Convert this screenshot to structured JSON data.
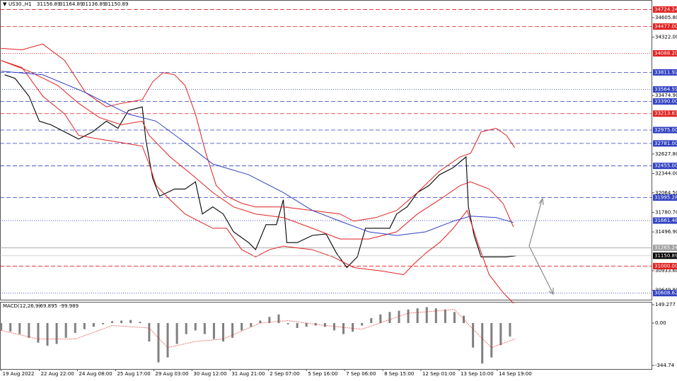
{
  "chart_data": [
    {
      "type": "line",
      "title": "US30.,H1",
      "ohlc": [
        31156.89,
        31164.89,
        31136.89,
        31150.89
      ],
      "xlim": [
        -13,
        551
      ],
      "ylim": [
        30503,
        34862
      ],
      "xticks": [
        {
          "value": -12,
          "label": "19 Aug 2022"
        },
        {
          "value": 21,
          "label": "22 Aug 22:00"
        },
        {
          "value": 54,
          "label": "24 Aug 08:00"
        },
        {
          "value": 87,
          "label": "25 Aug 17:00"
        },
        {
          "value": 120,
          "label": "29 Aug 03:00"
        },
        {
          "value": 153,
          "label": "30 Aug 12:00"
        },
        {
          "value": 186,
          "label": "31 Aug 21:00"
        },
        {
          "value": 219,
          "label": "2 Sep 07:00"
        },
        {
          "value": 252,
          "label": "5 Sep 16:00"
        },
        {
          "value": 285,
          "label": "7 Sep 06:00"
        },
        {
          "value": 318,
          "label": "8 Sep 15:00"
        },
        {
          "value": 351,
          "label": "12 Sep 01:00"
        },
        {
          "value": 384,
          "label": "13 Sep 10:00"
        },
        {
          "value": 417,
          "label": "14 Sep 19:00"
        }
      ],
      "yticks": [
        {
          "value": 34605.8,
          "label": "34605.80"
        },
        {
          "value": 34322,
          "label": "34322.00"
        },
        {
          "value": 33474.9,
          "label": "33474.90"
        },
        {
          "value": 32627.8,
          "label": "32627.80"
        },
        {
          "value": 32344,
          "label": "32344.00"
        },
        {
          "value": 32064.5,
          "label": "32064.50"
        },
        {
          "value": 31780.7,
          "label": "31780.70"
        },
        {
          "value": 31496.9,
          "label": "31496.90"
        },
        {
          "value": 30933.6,
          "label": "30933.60"
        },
        {
          "value": 30649.8,
          "label": "30649.80"
        }
      ],
      "series": [
        {
          "color": "#000000",
          "x": [
            -9,
            0,
            12,
            21,
            31,
            43,
            55,
            67,
            79,
            89,
            98,
            110,
            113,
            119,
            125,
            138,
            147,
            156,
            162,
            171,
            180,
            189,
            202,
            208,
            217,
            226,
            232,
            235,
            244,
            257,
            269,
            278,
            287,
            296,
            303,
            312,
            324,
            330,
            339,
            348,
            358,
            367,
            379,
            390,
            392,
            397,
            403,
            416,
            425,
            433
          ],
          "values": [
            33777,
            33725,
            33466,
            33104,
            33052,
            32948,
            32845,
            32948,
            33104,
            33000,
            33259,
            33311,
            32845,
            32275,
            32016,
            32119,
            32119,
            32223,
            31757,
            31860,
            31757,
            31498,
            31342,
            31239,
            31602,
            31602,
            31964,
            31342,
            31342,
            31446,
            31467,
            31187,
            30980,
            31135,
            31550,
            31550,
            31550,
            31757,
            31860,
            32068,
            32171,
            32327,
            32430,
            32586,
            31860,
            31446,
            31135,
            31135,
            31135,
            31151
          ]
        },
        {
          "color": "#e02020",
          "x": [
            -12,
            6,
            24,
            43,
            61,
            79,
            92,
            110,
            119,
            128,
            138,
            147,
            156,
            165,
            174,
            183,
            196,
            208,
            232,
            257,
            281,
            293,
            312,
            330,
            348,
            367,
            385,
            394,
            403,
            416,
            425,
            432
          ],
          "values": [
            34160,
            34139,
            34223,
            33984,
            33518,
            33311,
            33363,
            33415,
            33674,
            33808,
            33777,
            33622,
            33207,
            32638,
            32171,
            32016,
            31912,
            31860,
            31860,
            31809,
            31757,
            31653,
            31705,
            31809,
            32068,
            32379,
            32586,
            32638,
            32948,
            33000,
            32897,
            32720
          ]
        },
        {
          "color": "#e02020",
          "x": [
            -12,
            12,
            37,
            55,
            73,
            92,
            110,
            116,
            134,
            153,
            171,
            189,
            208,
            232,
            257,
            281,
            306,
            330,
            348,
            367,
            385,
            394,
            410,
            422,
            431
          ],
          "values": [
            33984,
            33829,
            33622,
            33363,
            33156,
            33052,
            33104,
            32897,
            32586,
            32327,
            32068,
            31860,
            31757,
            31705,
            31550,
            31394,
            31394,
            31498,
            31757,
            31964,
            32171,
            32223,
            32119,
            31912,
            31570
          ]
        },
        {
          "color": "#e02020",
          "x": [
            -12,
            6,
            24,
            43,
            55,
            73,
            92,
            110,
            116,
            122,
            134,
            147,
            159,
            171,
            183,
            196,
            208,
            220,
            232,
            257,
            275,
            293,
            318,
            336,
            345,
            355,
            367,
            379,
            391,
            400,
            410,
            422,
            431
          ],
          "values": [
            33984,
            33881,
            33466,
            33207,
            32897,
            32845,
            32793,
            32741,
            32482,
            32171,
            31964,
            31757,
            31653,
            31550,
            31550,
            31239,
            31135,
            31239,
            31291,
            31239,
            31135,
            30980,
            30928,
            30876,
            31032,
            31187,
            31342,
            31550,
            31809,
            31342,
            30876,
            30617,
            30462
          ]
        },
        {
          "color": "#3040c0",
          "x": [
            -12,
            24,
            61,
            98,
            122,
            147,
            171,
            202,
            232,
            257,
            281,
            306,
            330,
            355,
            379,
            394,
            416,
            431
          ],
          "values": [
            33829,
            33777,
            33518,
            33207,
            33104,
            32793,
            32482,
            32327,
            32068,
            31809,
            31653,
            31498,
            31446,
            31498,
            31653,
            31726,
            31705,
            31633
          ]
        }
      ],
      "levels": [
        {
          "value": 34724.24,
          "color": "#e02020",
          "dash": "dashed"
        },
        {
          "value": 34477,
          "label": "34477.00",
          "color": "#e02020",
          "dash": "dashed"
        },
        {
          "value": 34088.2,
          "label": "34088.20",
          "color": "#e02020",
          "dash": "dotted"
        },
        {
          "value": 33811.92,
          "color": "#3040c0",
          "dash": "dashed"
        },
        {
          "value": 33564.59,
          "color": "#3040c0",
          "dash": "dotted"
        },
        {
          "value": 33390,
          "label": "33390.00",
          "color": "#3040c0",
          "dash": "dashed"
        },
        {
          "value": 33213.63,
          "color": "#e02020",
          "dash": "dashed"
        },
        {
          "value": 32975,
          "label": "32975.00",
          "color": "#3040c0",
          "dash": "dashed"
        },
        {
          "value": 32781,
          "label": "32781.00",
          "color": "#3040c0",
          "dash": "dashed"
        },
        {
          "value": 32455,
          "label": "32455.00",
          "color": "#3040c0",
          "dash": "dashed"
        },
        {
          "value": 31995.28,
          "color": "#3040c0",
          "dash": "dashed"
        },
        {
          "value": 31661.46,
          "color": "#3040c0",
          "dash": "dotted"
        },
        {
          "value": 31265.24,
          "color": "#a0a0a0",
          "dash": "solid"
        },
        {
          "value": 31000,
          "label": "31000.00",
          "color": "#e02020",
          "dash": "dashed"
        },
        {
          "value": 30608.62,
          "color": "#3040c0",
          "dash": "dotted"
        }
      ],
      "current": 31150.89
    },
    {
      "type": "bar",
      "title": "MACD(12,26,9)",
      "readout": [
        -69.895,
        -99.989
      ],
      "color": "#808080",
      "ylim": [
        -374,
        167
      ],
      "yticks": [
        149.277,
        {
          "value": 0,
          "label": "0.00"
        },
        -344.74
      ],
      "x": [
        -12,
        -4,
        4,
        12,
        20,
        28,
        36,
        44,
        52,
        60,
        68,
        76,
        84,
        92,
        100,
        108,
        116,
        124,
        132,
        140,
        148,
        156,
        164,
        172,
        180,
        188,
        196,
        204,
        212,
        220,
        228,
        236,
        244,
        252,
        260,
        268,
        276,
        284,
        292,
        300,
        308,
        316,
        324,
        332,
        340,
        348,
        356,
        364,
        372,
        380,
        388,
        396,
        404,
        412,
        420,
        428
      ],
      "values": [
        -60,
        -70,
        -90,
        -120,
        -160,
        -185,
        -170,
        -120,
        -80,
        -50,
        -30,
        -10,
        15,
        20,
        25,
        10,
        -150,
        -320,
        -280,
        -170,
        -90,
        -60,
        -90,
        -130,
        -150,
        -120,
        -60,
        -30,
        20,
        50,
        70,
        -10,
        -40,
        -30,
        -20,
        -30,
        -60,
        -90,
        -70,
        -20,
        40,
        70,
        90,
        100,
        110,
        120,
        130,
        120,
        110,
        90,
        60,
        -200,
        -330,
        -280,
        -180,
        -110
      ],
      "signal": {
        "color": "#e02020",
        "x": [
          -12,
          20,
          52,
          84,
          116,
          132,
          156,
          180,
          212,
          236,
          268,
          300,
          340,
          380,
          396,
          412,
          432
        ],
        "values": [
          -60,
          -130,
          -130,
          -20,
          -40,
          -200,
          -150,
          -130,
          0,
          20,
          -20,
          -50,
          80,
          110,
          -50,
          -200,
          -130
        ]
      }
    }
  ]
}
